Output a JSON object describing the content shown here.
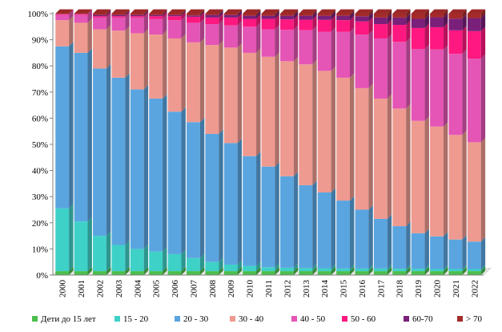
{
  "chart_data": {
    "type": "bar",
    "stacked": "percent",
    "categories": [
      "2000",
      "2001",
      "2002",
      "2003",
      "2004",
      "2005",
      "2006",
      "2007",
      "2008",
      "2009",
      "2010",
      "2011",
      "2012",
      "2013",
      "2014",
      "2015",
      "2016",
      "2017",
      "2018",
      "2019",
      "2020",
      "2021",
      "2022"
    ],
    "ylim": [
      0,
      100
    ],
    "y_ticks": [
      "0%",
      "10%",
      "20%",
      "30%",
      "40%",
      "50%",
      "60%",
      "70%",
      "80%",
      "90%",
      "100%"
    ],
    "grid": false,
    "legend_position": "bottom",
    "series": [
      {
        "name": "Дети до 15 лет",
        "color": "#4cbe4c",
        "values": [
          1.5,
          1.5,
          1.5,
          1.5,
          1.5,
          1.5,
          1.5,
          1.5,
          1.5,
          1.5,
          1.5,
          1.5,
          1.5,
          1.5,
          1.5,
          1.5,
          1.5,
          1.5,
          1.5,
          1.5,
          1.5,
          1.5,
          1.5
        ]
      },
      {
        "name": "15 - 20",
        "color": "#3ed1c7",
        "values": [
          24,
          19,
          13.5,
          10,
          8.5,
          7.5,
          6.5,
          5,
          3.5,
          2.5,
          2,
          1.5,
          1.3,
          1.2,
          1.1,
          1,
          1,
          1,
          0.9,
          0.9,
          0.8,
          0.8,
          0.8
        ]
      },
      {
        "name": "20 - 30",
        "color": "#5aa5e0",
        "values": [
          62,
          64.5,
          64,
          64,
          61,
          58.5,
          54.5,
          52,
          49,
          46.5,
          42,
          38.5,
          35,
          31.5,
          29,
          26,
          22.5,
          19,
          16.3,
          13.6,
          12.5,
          11.3,
          10.5
        ]
      },
      {
        "name": "30 - 40",
        "color": "#ee9a90",
        "values": [
          10,
          11.5,
          15,
          18,
          21.5,
          24.5,
          28,
          30.5,
          34,
          36.5,
          39.5,
          42,
          44,
          46,
          46.5,
          47,
          46.5,
          46,
          45,
          43,
          42,
          40,
          38
        ]
      },
      {
        "name": "40 - 50",
        "color": "#e455b5",
        "values": [
          2,
          3,
          4.5,
          5,
          6,
          6,
          7,
          7.5,
          8,
          8.5,
          10,
          10.5,
          12,
          13,
          15,
          17.5,
          20.5,
          23,
          25.5,
          27.5,
          29.5,
          31,
          32
        ]
      },
      {
        "name": "50 - 60",
        "color": "#ff1880",
        "values": [
          0.3,
          0.3,
          0.5,
          0.5,
          0.5,
          1,
          1.5,
          2.3,
          2.5,
          3,
          3,
          4,
          4,
          4,
          4.5,
          4.5,
          5,
          5.5,
          6.5,
          8,
          8.5,
          9,
          10.5
        ]
      },
      {
        "name": "60-70",
        "color": "#7a1f7a",
        "values": [
          0.1,
          0.1,
          0.5,
          0.5,
          0.5,
          0.5,
          0.5,
          0.5,
          1,
          1,
          1.2,
          1.2,
          1.4,
          1.5,
          1.6,
          1.7,
          2,
          2.5,
          2.8,
          3.5,
          3.8,
          4.5,
          5
        ]
      },
      {
        "name": "> 70",
        "color": "#a52a2a",
        "values": [
          0.1,
          0.1,
          0.5,
          0.5,
          0.5,
          0.5,
          0.5,
          0.7,
          0.5,
          0.5,
          0.8,
          0.8,
          0.8,
          0.8,
          0.8,
          0.8,
          1,
          1.5,
          1.5,
          2,
          1.4,
          1.9,
          1.7
        ]
      }
    ]
  }
}
